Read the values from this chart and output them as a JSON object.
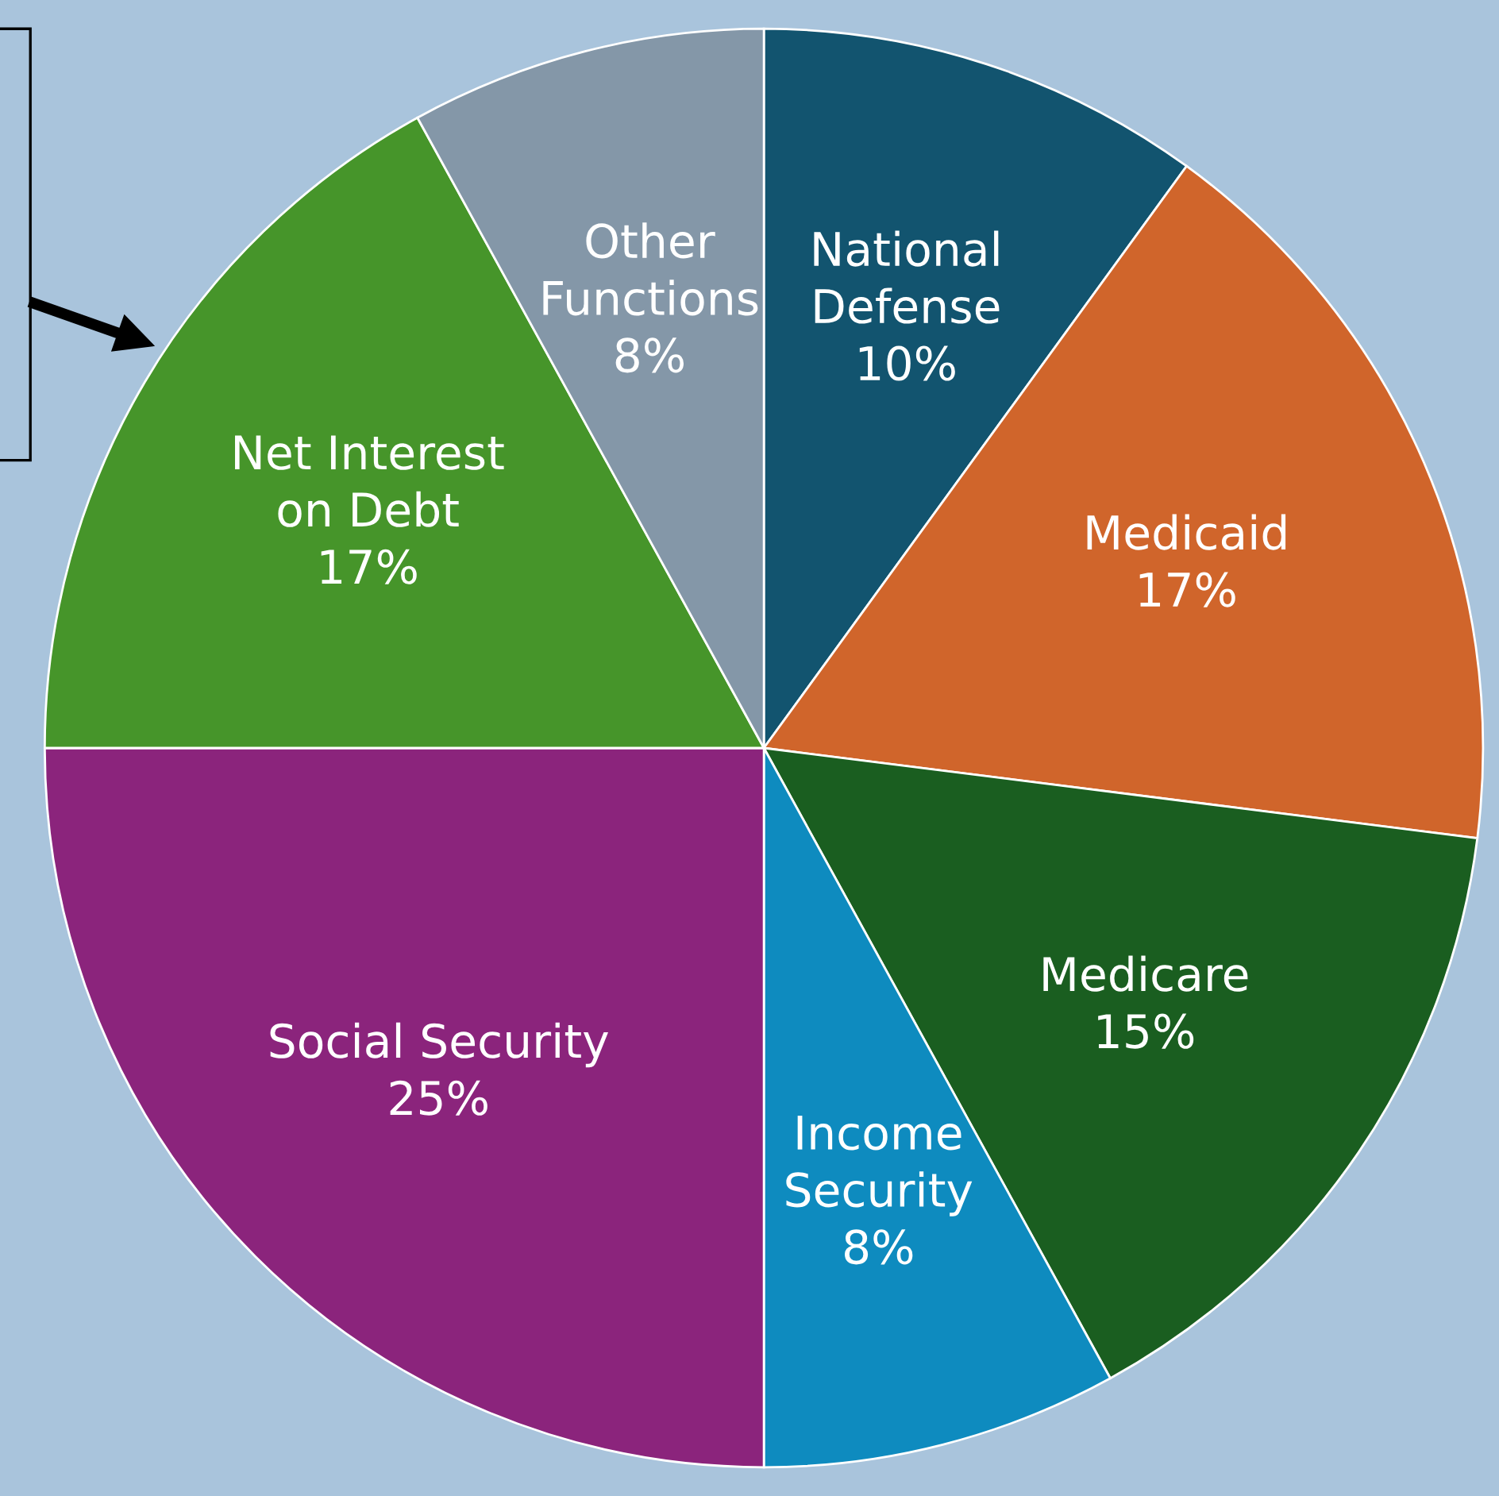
{
  "chart_data": {
    "type": "pie",
    "categories": [
      "National\nDefense",
      "Medicaid",
      "Medicare",
      "Income\nSecurity",
      "Social Security",
      "Net Interest\non Debt",
      "Other\nFunctions"
    ],
    "values": [
      10,
      17,
      15,
      8,
      25,
      17,
      8
    ],
    "value_labels": [
      "10%",
      "17%",
      "15%",
      "8%",
      "25%",
      "17%",
      "8%"
    ],
    "colors": [
      "#12546f",
      "#d0652b",
      "#1a5e20",
      "#0e8bbf",
      "#8b247c",
      "#46952a",
      "#8497a8"
    ]
  }
}
